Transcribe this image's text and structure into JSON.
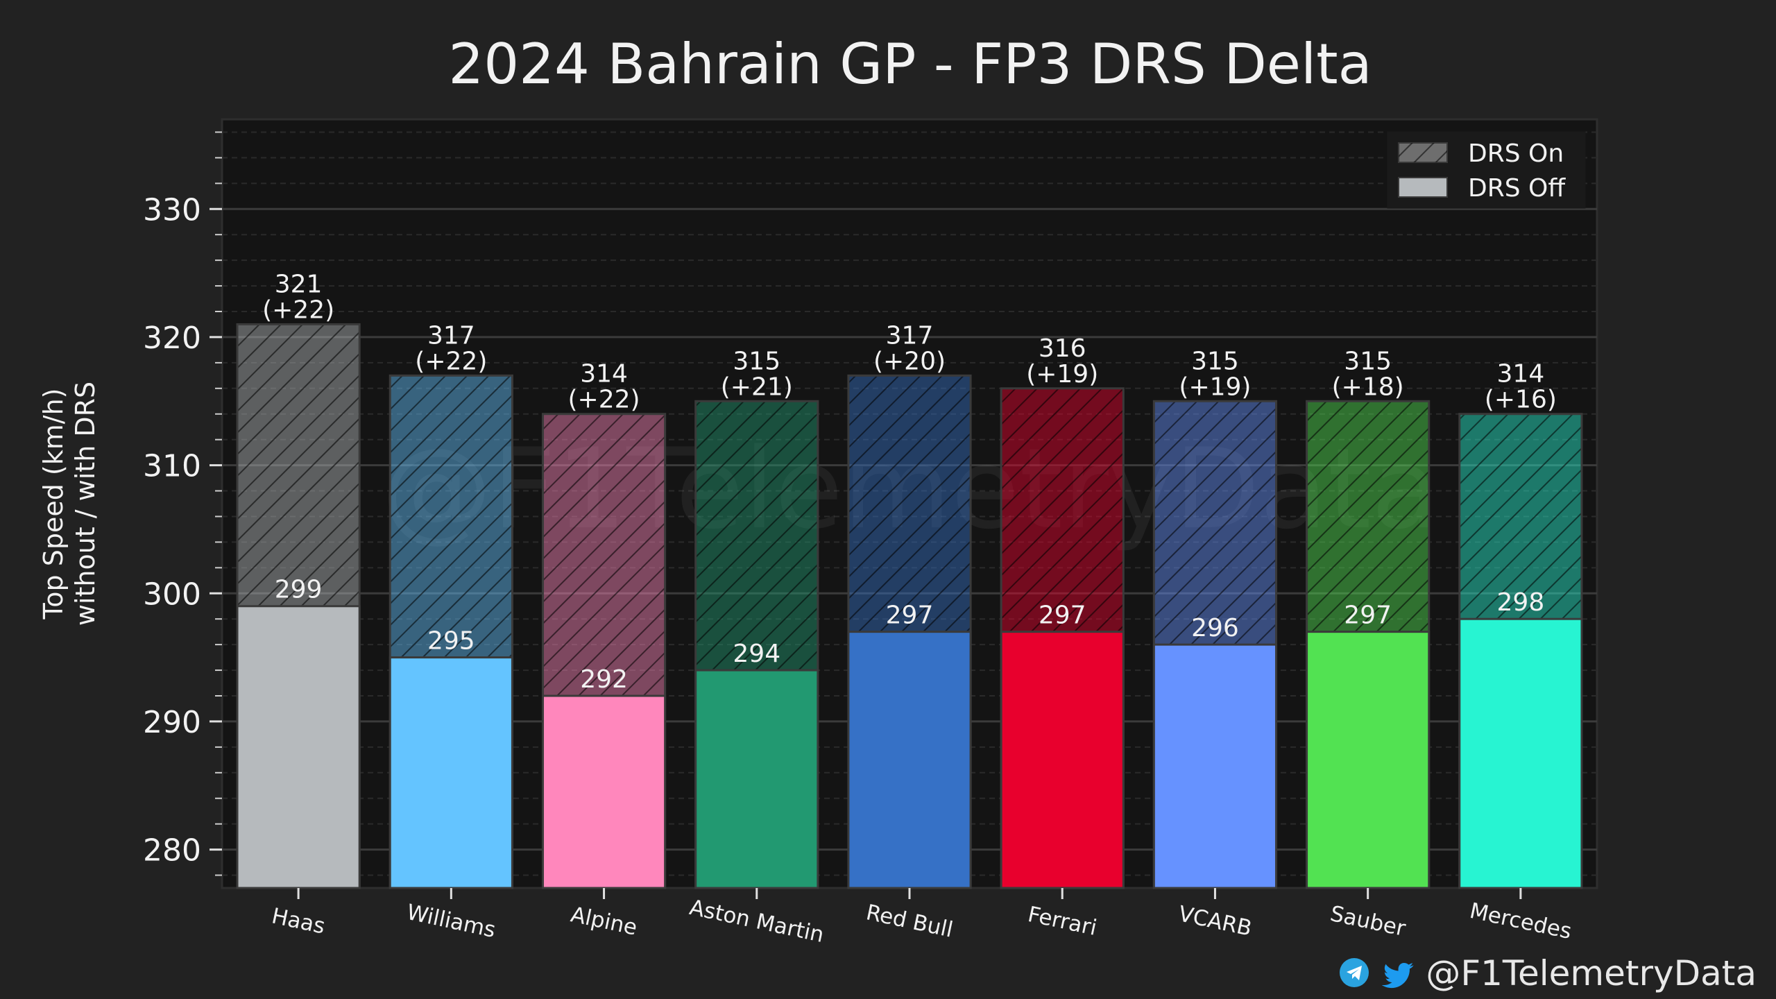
{
  "chart_data": {
    "type": "bar",
    "title": "2024 Bahrain GP - FP3 DRS Delta",
    "ylabel": [
      "Top Speed (km/h)",
      "without / with DRS"
    ],
    "ylim": [
      277,
      337
    ],
    "yticks": [
      280,
      290,
      300,
      310,
      320,
      330
    ],
    "grid": true,
    "legend_position": "top-right",
    "categories": [
      "Haas",
      "Williams",
      "Alpine",
      "Aston Martin",
      "Red Bull",
      "Ferrari",
      "VCARB",
      "Sauber",
      "Mercedes"
    ],
    "team_colors": [
      "#b6babd",
      "#64c4ff",
      "#ff87bc",
      "#229971",
      "#3671c6",
      "#e8002d",
      "#6692ff",
      "#52e252",
      "#27f4d2"
    ],
    "series": [
      {
        "name": "DRS Off",
        "values": [
          299,
          295,
          292,
          294,
          297,
          297,
          296,
          297,
          298
        ]
      },
      {
        "name": "DRS On",
        "values": [
          321,
          317,
          314,
          315,
          317,
          316,
          315,
          315,
          314
        ]
      }
    ],
    "delta_labels": [
      "(+22)",
      "(+22)",
      "(+22)",
      "(+21)",
      "(+20)",
      "(+19)",
      "(+19)",
      "(+18)",
      "(+16)"
    ],
    "legend": [
      "DRS On",
      "DRS Off"
    ],
    "watermark": "@F1TelemetryData"
  },
  "footer": {
    "handle": "@F1TelemetryData",
    "icons": [
      "telegram-icon",
      "twitter-icon"
    ]
  }
}
